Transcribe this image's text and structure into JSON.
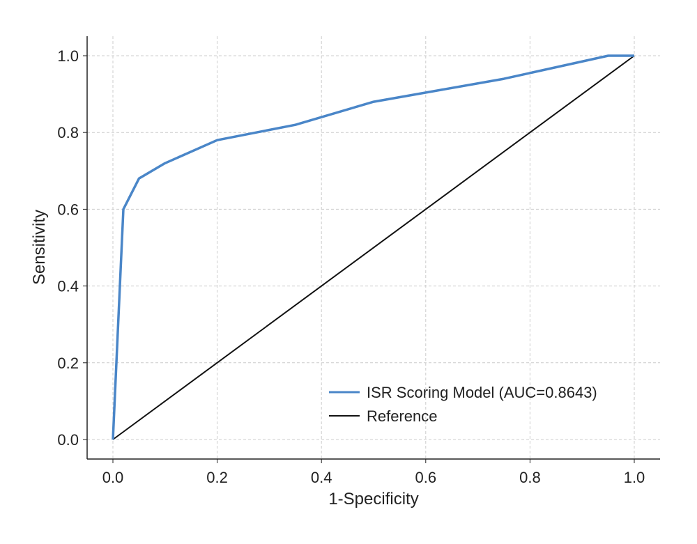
{
  "chart_data": {
    "type": "line",
    "title": "",
    "xlabel": "1-Specificity",
    "ylabel": "Sensitivity",
    "xlim": [
      0,
      1
    ],
    "ylim": [
      0,
      1
    ],
    "grid": true,
    "legend_position": "lower-right",
    "x_ticks": [
      "0.0",
      "0.2",
      "0.4",
      "0.6",
      "0.8",
      "1.0"
    ],
    "y_ticks": [
      "0.0",
      "0.2",
      "0.4",
      "0.6",
      "0.8",
      "1.0"
    ],
    "series": [
      {
        "name": "ISR Scoring Model (AUC=0.8643)",
        "color": "#4a86c8",
        "x": [
          0.0,
          0.02,
          0.05,
          0.1,
          0.2,
          0.35,
          0.5,
          0.75,
          0.95,
          1.0
        ],
        "y": [
          0.0,
          0.6,
          0.68,
          0.72,
          0.78,
          0.82,
          0.88,
          0.94,
          1.0,
          1.0
        ]
      },
      {
        "name": "Reference",
        "color": "#111111",
        "x": [
          0.0,
          1.0
        ],
        "y": [
          0.0,
          1.0
        ]
      }
    ]
  }
}
